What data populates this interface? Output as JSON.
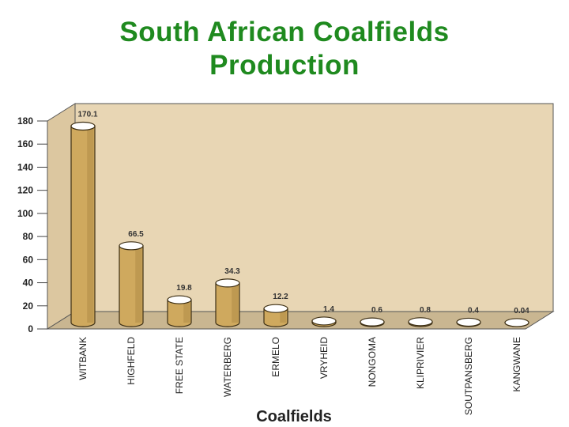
{
  "title_line1": "South African Coalfields",
  "title_line2": "Production",
  "colors": {
    "title": "#1f8a1f",
    "wall": "#e8d6b4",
    "bar": "#cfa95e",
    "bar_dark": "#8a6a2c"
  },
  "chart_data": {
    "type": "bar",
    "categories": [
      "WITBANK",
      "HIGHFELD",
      "FREE STATE",
      "WATERBERG",
      "ERMELO",
      "VRYHEID",
      "NONGOMA",
      "KLIPRIVIER",
      "SOUTPANSBERG",
      "KANGWANE"
    ],
    "values": [
      170.1,
      66.5,
      19.8,
      34.3,
      12.2,
      1.4,
      0.6,
      0.8,
      0.4,
      0.04
    ],
    "data_labels": [
      "170.1",
      "66.5",
      "19.8",
      "34.3",
      "12.2",
      "1.4",
      "0.6",
      "0.8",
      "0.4",
      "0.04"
    ],
    "xlabel": "Coalfields",
    "ylabel": "",
    "ylim": [
      0,
      180
    ],
    "yticks": [
      "0",
      "20",
      "40",
      "60",
      "80",
      "100",
      "120",
      "140",
      "160",
      "180"
    ],
    "grid": false,
    "style": "3d-cylinder"
  }
}
